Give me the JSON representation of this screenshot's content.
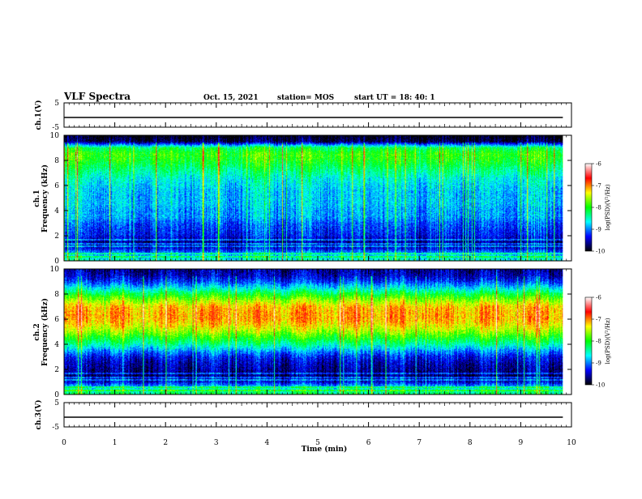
{
  "header": {
    "title": "VLF Spectra",
    "date": "Oct. 15, 2021",
    "station": "station= MOS",
    "start": "start  UT =   18: 40: 1"
  },
  "chart_data": [
    {
      "type": "line",
      "name": "ch.1 waveform",
      "ylabel": "ch.1(V)",
      "ylim": [
        -5,
        5
      ],
      "yticks": [
        5,
        -5
      ],
      "xlim": [
        0,
        10
      ],
      "level": -1.0,
      "color": "#000000"
    },
    {
      "type": "heatmap",
      "name": "ch.1 spectrogram",
      "ylabel": "ch.1 Frequency (kHz)",
      "ylabel_lines": [
        "ch.1",
        "Frequency (kHz)"
      ],
      "ylim": [
        0,
        10
      ],
      "yticks": [
        0,
        2,
        4,
        6,
        8,
        10
      ],
      "xlim": [
        0,
        10
      ],
      "data_end_min": 9.83,
      "profile": {
        "freq_khz": [
          0,
          0.5,
          1,
          1.5,
          2,
          2.5,
          3,
          3.5,
          4,
          4.5,
          5,
          5.5,
          6,
          6.5,
          7,
          7.5,
          8,
          8.5,
          9,
          9.5,
          10
        ],
        "log_psd": [
          -8.5,
          -8.8,
          -9.4,
          -9.6,
          -9.3,
          -9.2,
          -9.1,
          -8.9,
          -8.9,
          -8.8,
          -8.8,
          -8.8,
          -8.7,
          -8.6,
          -8.4,
          -8.2,
          -8.0,
          -7.9,
          -8.2,
          -9.8,
          -10
        ]
      },
      "colorbar": {
        "label": "log(PSD)(V²/Hz)",
        "min": -10,
        "max": -6,
        "ticks": [
          -6,
          -7,
          -8,
          -9,
          -10
        ],
        "colors": [
          "#ffffff",
          "#ff0000",
          "#ffff00",
          "#00ff00",
          "#00ffff",
          "#0000ff",
          "#000000"
        ]
      }
    },
    {
      "type": "heatmap",
      "name": "ch.2 spectrogram",
      "ylabel": "ch.2 Frequency (kHz)",
      "ylabel_lines": [
        "ch.2",
        "Frequency (kHz)"
      ],
      "ylim": [
        0,
        10
      ],
      "yticks": [
        0,
        2,
        4,
        6,
        8,
        10
      ],
      "xlim": [
        0,
        10
      ],
      "data_end_min": 9.83,
      "profile": {
        "freq_khz": [
          0,
          0.5,
          1,
          1.5,
          2,
          2.5,
          3,
          3.5,
          4,
          4.5,
          5,
          5.5,
          6,
          6.5,
          7,
          7.5,
          8,
          8.5,
          9,
          9.5,
          10
        ],
        "log_psd": [
          -8.2,
          -8.6,
          -9.4,
          -9.7,
          -9.6,
          -9.5,
          -9.3,
          -8.9,
          -8.4,
          -8.0,
          -7.6,
          -7.3,
          -7.1,
          -7.1,
          -7.2,
          -7.6,
          -8.1,
          -8.7,
          -9.2,
          -9.5,
          -9.6
        ]
      },
      "colorbar": {
        "label": "log(PSD)(V²/Hz)",
        "min": -10,
        "max": -6,
        "ticks": [
          -6,
          -7,
          -8,
          -9,
          -10
        ],
        "colors": [
          "#ffffff",
          "#ff0000",
          "#ffff00",
          "#00ff00",
          "#00ffff",
          "#0000ff",
          "#000000"
        ]
      }
    },
    {
      "type": "line",
      "name": "ch.3 waveform",
      "ylabel": "ch.3(V)",
      "ylim": [
        -5,
        5
      ],
      "yticks": [
        5,
        -5
      ],
      "xlim": [
        0,
        10
      ],
      "level": -1.0,
      "color": "#000000",
      "xlabel": "Time (min)",
      "xticks": [
        0,
        1,
        2,
        3,
        4,
        5,
        6,
        7,
        8,
        9,
        10
      ]
    }
  ]
}
